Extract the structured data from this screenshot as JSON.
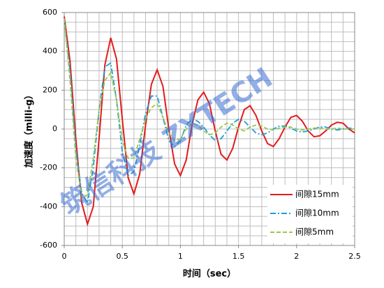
{
  "chart_data": {
    "type": "line",
    "xlabel": "时间（sec）",
    "ylabel": "加速度（milli-g）",
    "annotation": "筑信科技 ZXTECH",
    "x": [
      0,
      0.05,
      0.1,
      0.15,
      0.2,
      0.25,
      0.3,
      0.35,
      0.4,
      0.45,
      0.5,
      0.55,
      0.6,
      0.65,
      0.7,
      0.75,
      0.8,
      0.85,
      0.9,
      0.95,
      1.0,
      1.05,
      1.1,
      1.15,
      1.2,
      1.25,
      1.3,
      1.35,
      1.4,
      1.45,
      1.5,
      1.55,
      1.6,
      1.65,
      1.7,
      1.75,
      1.8,
      1.85,
      1.9,
      1.95,
      2.0,
      2.05,
      2.1,
      2.15,
      2.2,
      2.25,
      2.3,
      2.35,
      2.4,
      2.45,
      2.5
    ],
    "series": [
      {
        "name": "间隙15mm",
        "color": "#e31a1c",
        "dash": "solid",
        "values": [
          580,
          350,
          -50,
          -380,
          -490,
          -400,
          -50,
          330,
          470,
          360,
          50,
          -250,
          -335,
          -230,
          20,
          230,
          305,
          220,
          0,
          -180,
          -240,
          -160,
          20,
          150,
          190,
          130,
          -10,
          -130,
          -160,
          -100,
          10,
          100,
          120,
          70,
          -10,
          -75,
          -90,
          -50,
          10,
          60,
          70,
          40,
          -10,
          -40,
          -35,
          -10,
          20,
          35,
          30,
          0,
          -20
        ]
      },
      {
        "name": "间隙10mm",
        "color": "#1b9fd8",
        "dash": "dashdot",
        "values": [
          560,
          300,
          -100,
          -330,
          -380,
          -200,
          100,
          320,
          340,
          150,
          -120,
          -240,
          -220,
          -80,
          80,
          170,
          170,
          60,
          -60,
          -90,
          -60,
          20,
          50,
          40,
          10,
          -30,
          -60,
          -50,
          -10,
          30,
          50,
          40,
          10,
          -20,
          -30,
          -20,
          0,
          15,
          15,
          5,
          -10,
          -15,
          -10,
          0,
          10,
          10,
          0,
          -5,
          0,
          5,
          0
        ]
      },
      {
        "name": "间隙5mm",
        "color": "#9bc84a",
        "dash": "dash",
        "values": [
          570,
          250,
          -150,
          -350,
          -340,
          -150,
          100,
          250,
          290,
          150,
          -60,
          -150,
          -150,
          -50,
          50,
          110,
          130,
          60,
          -20,
          -60,
          -50,
          0,
          30,
          20,
          -10,
          -30,
          -20,
          10,
          30,
          20,
          0,
          -10,
          10,
          20,
          15,
          0,
          -5,
          5,
          10,
          10,
          0,
          -5,
          0,
          5,
          5,
          0,
          0,
          5,
          0,
          0,
          0
        ]
      }
    ],
    "xlim": [
      0,
      2.5
    ],
    "xticks": [
      0,
      0.5,
      1,
      1.5,
      2,
      2.5
    ],
    "xminor": 0.1,
    "ylim": [
      -600,
      600
    ],
    "yticks": [
      -600,
      -400,
      -200,
      0,
      200,
      400,
      600
    ],
    "yminor": 50,
    "grid": true,
    "legend": "lower right"
  }
}
